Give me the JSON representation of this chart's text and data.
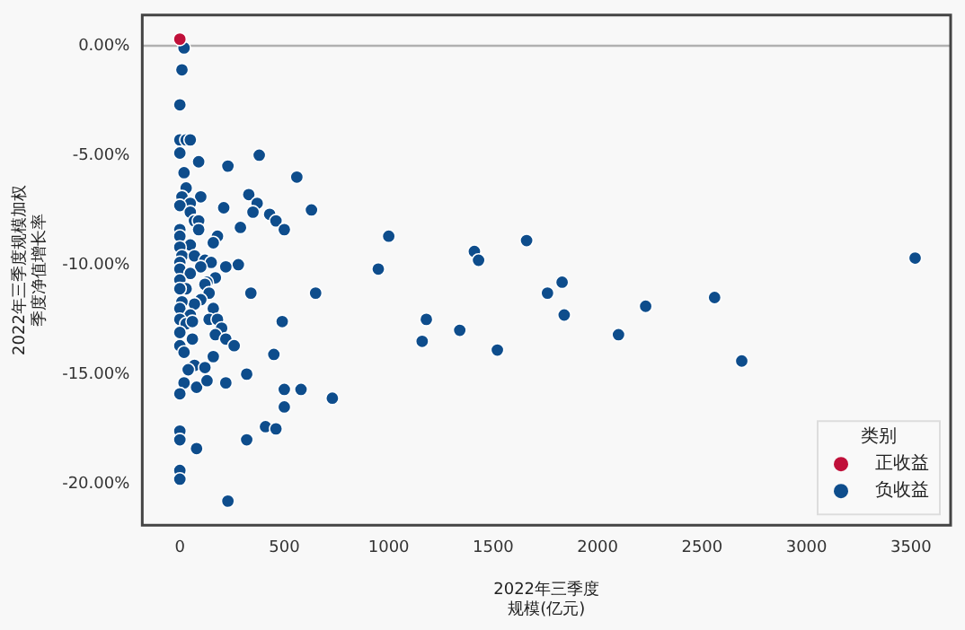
{
  "chart_data": {
    "type": "scatter",
    "xlabel": "2022年三季度规模(亿元)",
    "ylabel": "2022年三季度规模加权季度净值增长率",
    "legend_title": "类别",
    "legend": "bottom right",
    "grid": false,
    "marker": "circle",
    "xlim": [
      -180,
      3690
    ],
    "xticks": [
      0,
      500,
      1000,
      1500,
      2000,
      2500,
      3000,
      3500
    ],
    "ylim": [
      -21.9,
      1.4
    ],
    "yticks": [
      {
        "value": 0,
        "label": "0.00%"
      },
      {
        "value": -5,
        "label": "-5.00%"
      },
      {
        "value": -10,
        "label": "-10.00%"
      },
      {
        "value": -15,
        "label": "-15.00%"
      },
      {
        "value": -20,
        "label": "-20.00%"
      }
    ],
    "ref_lines": [
      {
        "axis": "y",
        "value": 0,
        "color": "#b0b0b0"
      }
    ],
    "series": [
      {
        "name": "正收益",
        "color": "#c0103a",
        "x": [
          0
        ],
        "values": [
          0.3
        ]
      },
      {
        "name": "负收益",
        "color": "#0e4d8c",
        "x": [
          20,
          10,
          0,
          0,
          30,
          50,
          0,
          90,
          230,
          380,
          20,
          560,
          30,
          10,
          100,
          330,
          50,
          370,
          0,
          210,
          50,
          350,
          430,
          630,
          460,
          70,
          90,
          500,
          290,
          0,
          90,
          0,
          180,
          160,
          50,
          0,
          10,
          70,
          120,
          150,
          0,
          280,
          220,
          100,
          0,
          50,
          170,
          0,
          130,
          120,
          30,
          0,
          140,
          340,
          650,
          100,
          70,
          10,
          0,
          160,
          50,
          0,
          140,
          180,
          490,
          30,
          60,
          0,
          200,
          170,
          220,
          60,
          0,
          260,
          20,
          160,
          450,
          70,
          40,
          120,
          320,
          20,
          80,
          130,
          220,
          500,
          580,
          0,
          730,
          500,
          410,
          460,
          0,
          0,
          320,
          80,
          0,
          0,
          230,
          1000,
          950,
          1410,
          1430,
          1660,
          1760,
          1180,
          1160,
          1340,
          1520,
          1830,
          1840,
          2100,
          2230,
          2560,
          2690,
          3520
        ],
        "values": [
          -0.1,
          -1.1,
          -2.7,
          -4.3,
          -4.3,
          -4.3,
          -4.9,
          -5.3,
          -5.5,
          -5.0,
          -5.8,
          -6.0,
          -6.5,
          -6.9,
          -6.9,
          -6.8,
          -7.2,
          -7.2,
          -7.3,
          -7.4,
          -7.6,
          -7.6,
          -7.7,
          -7.5,
          -8.0,
          -8.0,
          -8.0,
          -8.4,
          -8.3,
          -8.4,
          -8.4,
          -8.7,
          -8.7,
          -9.0,
          -9.1,
          -9.2,
          -9.6,
          -9.6,
          -9.8,
          -9.9,
          -9.9,
          -10.0,
          -10.1,
          -10.1,
          -10.2,
          -10.4,
          -10.6,
          -10.7,
          -10.8,
          -10.9,
          -11.1,
          -11.1,
          -11.3,
          -11.3,
          -11.3,
          -11.6,
          -11.8,
          -11.7,
          -12.0,
          -12.0,
          -12.3,
          -12.5,
          -12.5,
          -12.5,
          -12.6,
          -12.7,
          -12.6,
          -13.1,
          -12.9,
          -13.2,
          -13.4,
          -13.4,
          -13.7,
          -13.7,
          -14.0,
          -14.2,
          -14.1,
          -14.6,
          -14.8,
          -14.7,
          -15.0,
          -15.4,
          -15.6,
          -15.3,
          -15.4,
          -15.7,
          -15.7,
          -15.9,
          -16.1,
          -16.5,
          -17.4,
          -17.5,
          -17.6,
          -18.0,
          -18.0,
          -18.4,
          -19.4,
          -19.8,
          -20.8,
          -8.7,
          -10.2,
          -9.4,
          -9.8,
          -8.9,
          -11.3,
          -12.5,
          -13.5,
          -13.0,
          -13.9,
          -10.8,
          -12.3,
          -13.2,
          -11.9,
          -11.5,
          -14.4,
          -9.7
        ]
      }
    ]
  }
}
